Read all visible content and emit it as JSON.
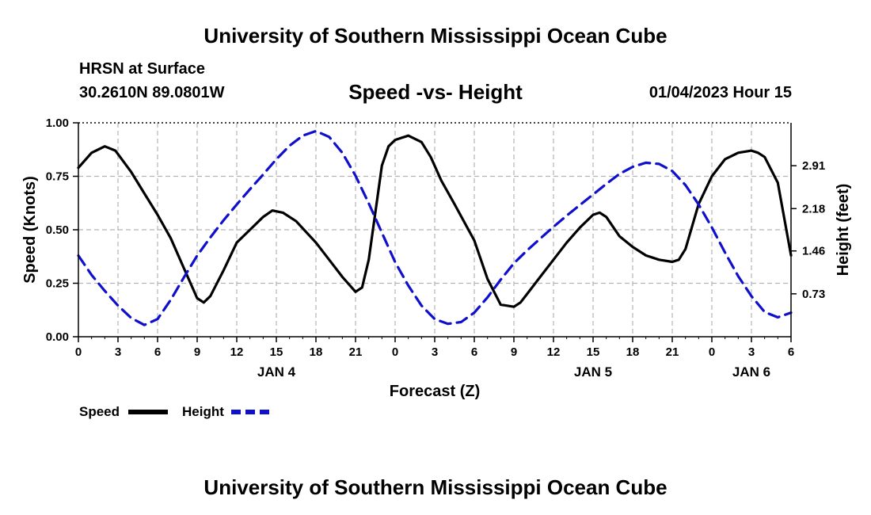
{
  "header": {
    "title": "University of Southern Mississippi Ocean Cube",
    "station": "HRSN at Surface",
    "coords": "30.2610N  89.0801W",
    "chart_title": "Speed -vs- Height",
    "date": "01/04/2023 Hour 15"
  },
  "footer": {
    "title": "University of Southern Mississippi Ocean Cube"
  },
  "chart_data": {
    "type": "line",
    "title": "Speed -vs- Height",
    "xlabel": "Forecast (Z)",
    "ylabel": "Speed (Knots)",
    "y2label": "Height (feet)",
    "xlim": [
      0,
      54
    ],
    "ylim": [
      0,
      1
    ],
    "y2lim": [
      0,
      3.64
    ],
    "grid": true,
    "legend_position": "bottom-left",
    "x_ticks": [
      0,
      3,
      6,
      9,
      12,
      15,
      18,
      21,
      24,
      27,
      30,
      33,
      36,
      39,
      42,
      45,
      48,
      51,
      54
    ],
    "x_tick_labels": [
      "0",
      "3",
      "6",
      "9",
      "12",
      "15",
      "18",
      "21",
      "0",
      "3",
      "6",
      "9",
      "12",
      "15",
      "18",
      "21",
      "0",
      "3",
      "6"
    ],
    "day_ticks": [
      15,
      39,
      51
    ],
    "day_labels": [
      "JAN 4",
      "JAN 5",
      "JAN 6"
    ],
    "y_ticks": [
      0,
      0.25,
      0.5,
      0.75,
      1.0
    ],
    "y_tick_labels": [
      "0.00",
      "0.25",
      "0.50",
      "0.75",
      "1.00"
    ],
    "y2_ticks": [
      0.73,
      1.46,
      2.18,
      2.91
    ],
    "y2_tick_labels": [
      "0.73",
      "1.46",
      "2.18",
      "2.91"
    ],
    "series": [
      {
        "name": "Speed",
        "axis": "left",
        "color": "#000000",
        "dash": "solid",
        "x": [
          0,
          1,
          2,
          2.8,
          4,
          5,
          6,
          7,
          8,
          9,
          9.5,
          10,
          11,
          12,
          13,
          14,
          14.7,
          15.5,
          16.5,
          18,
          19,
          20,
          21,
          21.5,
          22,
          23,
          23.5,
          24,
          25,
          26,
          26.7,
          27.5,
          28.5,
          30,
          31,
          32,
          33,
          33.5,
          34,
          35,
          36,
          37,
          38,
          39,
          39.5,
          40,
          41,
          42,
          43,
          44,
          45,
          45.5,
          46,
          47,
          48,
          49,
          50,
          51,
          51.5,
          52,
          53,
          54
        ],
        "values": [
          0.79,
          0.86,
          0.89,
          0.87,
          0.77,
          0.67,
          0.57,
          0.46,
          0.32,
          0.18,
          0.16,
          0.19,
          0.31,
          0.44,
          0.5,
          0.56,
          0.59,
          0.58,
          0.54,
          0.44,
          0.36,
          0.28,
          0.21,
          0.23,
          0.36,
          0.8,
          0.89,
          0.92,
          0.94,
          0.91,
          0.84,
          0.73,
          0.62,
          0.45,
          0.27,
          0.15,
          0.14,
          0.16,
          0.2,
          0.28,
          0.36,
          0.44,
          0.51,
          0.57,
          0.58,
          0.56,
          0.47,
          0.42,
          0.38,
          0.36,
          0.35,
          0.36,
          0.41,
          0.62,
          0.75,
          0.83,
          0.86,
          0.87,
          0.86,
          0.84,
          0.72,
          0.38
        ]
      },
      {
        "name": "Height",
        "axis": "right",
        "color": "#1010cc",
        "dash": "dashed",
        "x": [
          0,
          1,
          2,
          3,
          4,
          5,
          6,
          7,
          8,
          9,
          10,
          11,
          12,
          13,
          14,
          15,
          16,
          17,
          18,
          19,
          20,
          21,
          22,
          23,
          24,
          25,
          26,
          27,
          28,
          29,
          30,
          31,
          32,
          33,
          34,
          35,
          36,
          37,
          38,
          39,
          40,
          41,
          42,
          43,
          44,
          45,
          46,
          47,
          48,
          49,
          50,
          51,
          52,
          53,
          54
        ],
        "values": [
          1.38,
          1.05,
          0.78,
          0.53,
          0.32,
          0.2,
          0.3,
          0.63,
          1.01,
          1.38,
          1.69,
          1.98,
          2.25,
          2.51,
          2.76,
          3.02,
          3.25,
          3.42,
          3.5,
          3.4,
          3.13,
          2.74,
          2.27,
          1.77,
          1.27,
          0.87,
          0.53,
          0.3,
          0.22,
          0.25,
          0.41,
          0.67,
          0.97,
          1.25,
          1.47,
          1.67,
          1.87,
          2.06,
          2.24,
          2.42,
          2.6,
          2.77,
          2.89,
          2.96,
          2.94,
          2.82,
          2.58,
          2.25,
          1.86,
          1.43,
          1.03,
          0.69,
          0.42,
          0.33,
          0.41
        ]
      }
    ]
  },
  "legend": {
    "speed_label": "Speed",
    "height_label": "Height"
  },
  "colors": {
    "speed": "#000000",
    "height": "#1010cc",
    "grid": "#b4b4b4"
  }
}
